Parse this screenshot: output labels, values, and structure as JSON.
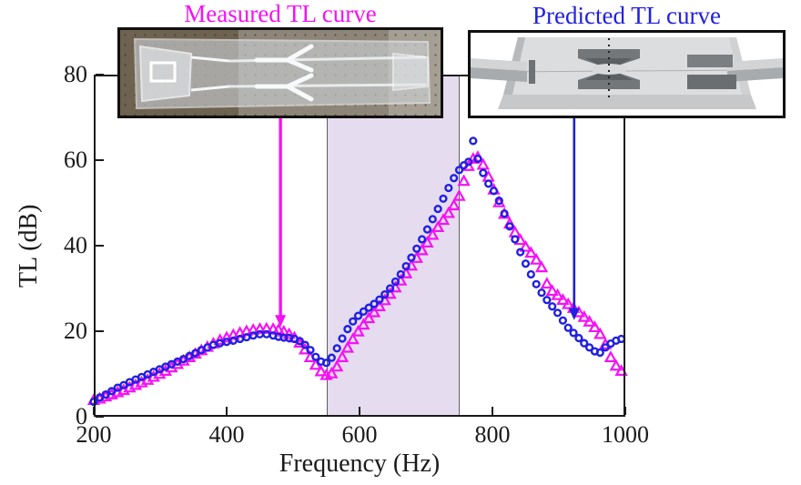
{
  "figure": {
    "measured_title": "Measured TL curve",
    "predicted_title": "Predicted TL curve"
  },
  "colors": {
    "measured": "#F511F5",
    "predicted": "#2020E0",
    "band_fill": "#E5DCEF",
    "band_border": "#606060",
    "axis": "#1A1A1A"
  },
  "chart_data": {
    "type": "scatter",
    "title": "",
    "xlabel": "Frequency (Hz)",
    "ylabel": "TL (dB)",
    "xlim": [
      200,
      1000
    ],
    "ylim": [
      0,
      80
    ],
    "x_ticks": [
      200,
      400,
      600,
      800,
      1000
    ],
    "y_ticks": [
      0,
      20,
      40,
      60,
      80
    ],
    "grid": false,
    "legend_position": "top-insets",
    "highlight_band_hz": [
      550,
      750
    ],
    "series": [
      {
        "name": "Measured TL curve",
        "marker": "triangle",
        "color_key": "measured",
        "points": [
          [
            200,
            3.8
          ],
          [
            209,
            4.1
          ],
          [
            218,
            4.6
          ],
          [
            227,
            5.1
          ],
          [
            236,
            5.6
          ],
          [
            245,
            6.1
          ],
          [
            254,
            6.7
          ],
          [
            263,
            7.3
          ],
          [
            272,
            7.9
          ],
          [
            281,
            8.5
          ],
          [
            290,
            9.2
          ],
          [
            299,
            9.9
          ],
          [
            308,
            10.6
          ],
          [
            317,
            11.4
          ],
          [
            326,
            12.2
          ],
          [
            335,
            13.0
          ],
          [
            344,
            13.8
          ],
          [
            353,
            14.6
          ],
          [
            362,
            15.4
          ],
          [
            371,
            16.2
          ],
          [
            380,
            17.0
          ],
          [
            390,
            17.8
          ],
          [
            400,
            18.4
          ],
          [
            410,
            19.0
          ],
          [
            420,
            19.5
          ],
          [
            430,
            19.9
          ],
          [
            440,
            20.2
          ],
          [
            450,
            20.4
          ],
          [
            460,
            20.5
          ],
          [
            470,
            20.4
          ],
          [
            478,
            20.2
          ],
          [
            486,
            19.8
          ],
          [
            494,
            19.2
          ],
          [
            502,
            18.4
          ],
          [
            510,
            17.2
          ],
          [
            518,
            15.6
          ],
          [
            526,
            13.8
          ],
          [
            534,
            12.0
          ],
          [
            542,
            10.5
          ],
          [
            550,
            9.6
          ],
          [
            558,
            10.0
          ],
          [
            566,
            11.6
          ],
          [
            574,
            13.8
          ],
          [
            582,
            16.0
          ],
          [
            590,
            18.0
          ],
          [
            598,
            19.8
          ],
          [
            606,
            21.4
          ],
          [
            614,
            22.9
          ],
          [
            622,
            24.3
          ],
          [
            630,
            25.7
          ],
          [
            638,
            27.1
          ],
          [
            646,
            28.6
          ],
          [
            654,
            30.1
          ],
          [
            662,
            31.7
          ],
          [
            670,
            33.4
          ],
          [
            678,
            35.2
          ],
          [
            686,
            37.0
          ],
          [
            694,
            38.8
          ],
          [
            702,
            40.6
          ],
          [
            710,
            42.4
          ],
          [
            718,
            44.2
          ],
          [
            726,
            45.9
          ],
          [
            734,
            47.5
          ],
          [
            742,
            49.3
          ],
          [
            750,
            51.5
          ],
          [
            757,
            55.0
          ],
          [
            764,
            58.5
          ],
          [
            771,
            60.2
          ],
          [
            778,
            60.6
          ],
          [
            786,
            58.8
          ],
          [
            794,
            56.0
          ],
          [
            802,
            53.0
          ],
          [
            810,
            50.0
          ],
          [
            818,
            47.3
          ],
          [
            826,
            45.0
          ],
          [
            834,
            43.0
          ],
          [
            842,
            41.2
          ],
          [
            850,
            39.6
          ],
          [
            858,
            38.2
          ],
          [
            866,
            36.6
          ],
          [
            874,
            34.8
          ],
          [
            882,
            31.0
          ],
          [
            890,
            29.3
          ],
          [
            898,
            28.3
          ],
          [
            906,
            27.2
          ],
          [
            914,
            26.2
          ],
          [
            922,
            25.3
          ],
          [
            930,
            24.3
          ],
          [
            938,
            23.2
          ],
          [
            946,
            22.1
          ],
          [
            954,
            20.8
          ],
          [
            962,
            19.2
          ],
          [
            970,
            16.8
          ],
          [
            978,
            13.8
          ],
          [
            986,
            11.8
          ],
          [
            994,
            10.6
          ]
        ]
      },
      {
        "name": "Predicted TL curve",
        "marker": "circle",
        "color_key": "predicted",
        "points": [
          [
            200,
            3.5
          ],
          [
            209,
            4.5
          ],
          [
            218,
            5.2
          ],
          [
            227,
            6.0
          ],
          [
            236,
            6.8
          ],
          [
            245,
            7.4
          ],
          [
            254,
            8.1
          ],
          [
            263,
            8.7
          ],
          [
            272,
            9.3
          ],
          [
            281,
            9.9
          ],
          [
            290,
            10.5
          ],
          [
            299,
            11.1
          ],
          [
            308,
            11.7
          ],
          [
            317,
            12.3
          ],
          [
            326,
            12.9
          ],
          [
            335,
            13.5
          ],
          [
            344,
            14.2
          ],
          [
            353,
            14.9
          ],
          [
            362,
            15.6
          ],
          [
            371,
            16.2
          ],
          [
            380,
            16.8
          ],
          [
            390,
            17.2
          ],
          [
            400,
            17.5
          ],
          [
            410,
            17.8
          ],
          [
            420,
            18.2
          ],
          [
            430,
            18.6
          ],
          [
            440,
            19.0
          ],
          [
            450,
            19.3
          ],
          [
            460,
            19.3
          ],
          [
            470,
            19.0
          ],
          [
            478,
            18.7
          ],
          [
            486,
            18.5
          ],
          [
            494,
            18.4
          ],
          [
            502,
            18.2
          ],
          [
            510,
            17.7
          ],
          [
            518,
            16.8
          ],
          [
            526,
            15.6
          ],
          [
            534,
            14.0
          ],
          [
            542,
            12.9
          ],
          [
            550,
            12.6
          ],
          [
            558,
            13.8
          ],
          [
            566,
            16.0
          ],
          [
            574,
            18.3
          ],
          [
            582,
            20.5
          ],
          [
            590,
            22.3
          ],
          [
            598,
            23.6
          ],
          [
            606,
            24.6
          ],
          [
            614,
            25.5
          ],
          [
            622,
            26.4
          ],
          [
            630,
            27.4
          ],
          [
            638,
            28.6
          ],
          [
            646,
            30.0
          ],
          [
            654,
            31.6
          ],
          [
            662,
            33.3
          ],
          [
            670,
            35.2
          ],
          [
            678,
            37.2
          ],
          [
            686,
            39.3
          ],
          [
            694,
            41.5
          ],
          [
            702,
            43.8
          ],
          [
            710,
            46.2
          ],
          [
            718,
            48.6
          ],
          [
            726,
            51.0
          ],
          [
            734,
            53.5
          ],
          [
            742,
            55.8
          ],
          [
            750,
            57.7
          ],
          [
            757,
            58.8
          ],
          [
            764,
            59.6
          ],
          [
            771,
            64.5
          ],
          [
            778,
            60.3
          ],
          [
            786,
            57.0
          ],
          [
            794,
            54.5
          ],
          [
            802,
            52.8
          ],
          [
            810,
            50.5
          ],
          [
            818,
            47.5
          ],
          [
            826,
            44.5
          ],
          [
            834,
            41.5
          ],
          [
            842,
            38.5
          ],
          [
            850,
            35.8
          ],
          [
            858,
            33.3
          ],
          [
            866,
            31.0
          ],
          [
            874,
            29.0
          ],
          [
            882,
            27.3
          ],
          [
            890,
            25.8
          ],
          [
            898,
            24.3
          ],
          [
            906,
            22.5
          ],
          [
            914,
            20.8
          ],
          [
            922,
            19.6
          ],
          [
            930,
            18.4
          ],
          [
            938,
            17.2
          ],
          [
            946,
            16.2
          ],
          [
            954,
            15.3
          ],
          [
            962,
            15.0
          ],
          [
            970,
            16.2
          ],
          [
            978,
            17.1
          ],
          [
            986,
            17.8
          ],
          [
            994,
            18.2
          ]
        ]
      }
    ],
    "annotations": [
      {
        "name": "measured-arrow",
        "color_key": "measured",
        "x_hz": 481,
        "from_db": 69.8,
        "tip_db": 21.0,
        "width": 3.4
      },
      {
        "name": "predicted-arrow",
        "color_key": "predicted",
        "x_hz": 923,
        "from_db": 69.8,
        "tip_db": 22.6,
        "width": 2.6
      }
    ]
  }
}
